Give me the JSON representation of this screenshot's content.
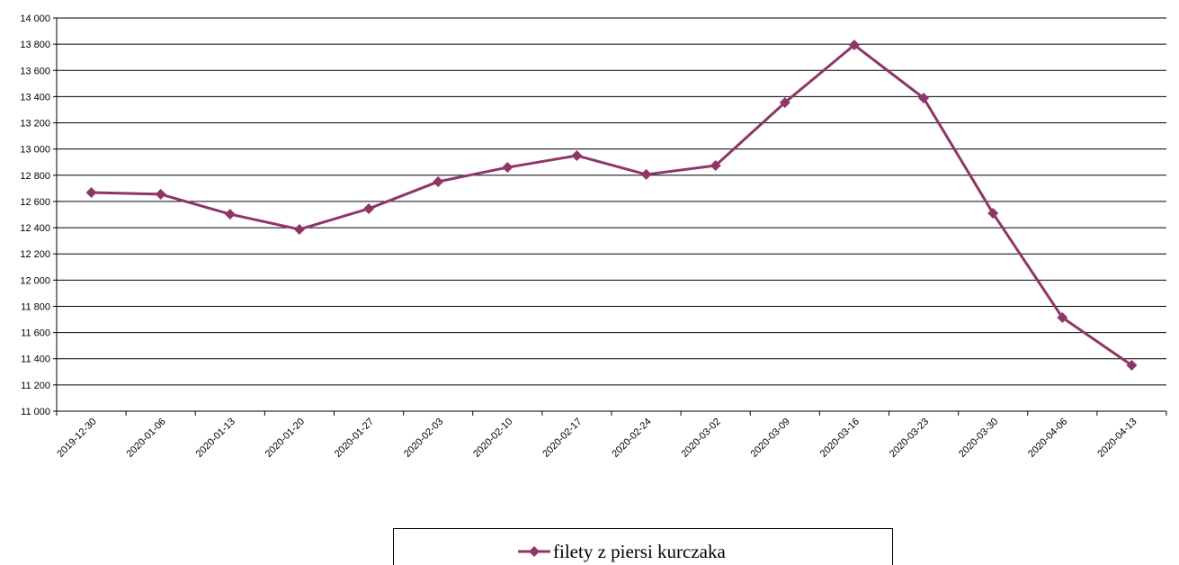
{
  "chart_data": {
    "type": "line",
    "categories": [
      "2019-12-30",
      "2020-01-06",
      "2020-01-13",
      "2020-01-20",
      "2020-01-27",
      "2020-02-03",
      "2020-02-10",
      "2020-02-17",
      "2020-02-24",
      "2020-03-02",
      "2020-03-09",
      "2020-03-16",
      "2020-03-23",
      "2020-03-30",
      "2020-04-06",
      "2020-04-13"
    ],
    "series": [
      {
        "name": "filety z piersi kurczaka",
        "color": "#8e3667",
        "values": [
          12668,
          12655,
          12503,
          12387,
          12545,
          12751,
          12860,
          12950,
          12806,
          12874,
          13355,
          13794,
          13389,
          12510,
          11714,
          11350
        ]
      }
    ],
    "ylim": [
      11000,
      14000
    ],
    "yticks": [
      {
        "value": 11000,
        "label": "11 000"
      },
      {
        "value": 11200,
        "label": "11 200"
      },
      {
        "value": 11400,
        "label": "11 400"
      },
      {
        "value": 11600,
        "label": "11 600"
      },
      {
        "value": 11800,
        "label": "11 800"
      },
      {
        "value": 12000,
        "label": "12 000"
      },
      {
        "value": 12200,
        "label": "12 200"
      },
      {
        "value": 12400,
        "label": "12 400"
      },
      {
        "value": 12600,
        "label": "12 600"
      },
      {
        "value": 12800,
        "label": "12 800"
      },
      {
        "value": 13000,
        "label": "13 000"
      },
      {
        "value": 13200,
        "label": "13 200"
      },
      {
        "value": 13400,
        "label": "13 400"
      },
      {
        "value": 13600,
        "label": "13 600"
      },
      {
        "value": 13800,
        "label": "13 800"
      },
      {
        "value": 14000,
        "label": "14 000"
      }
    ],
    "grid": true,
    "legend": "bottom"
  }
}
